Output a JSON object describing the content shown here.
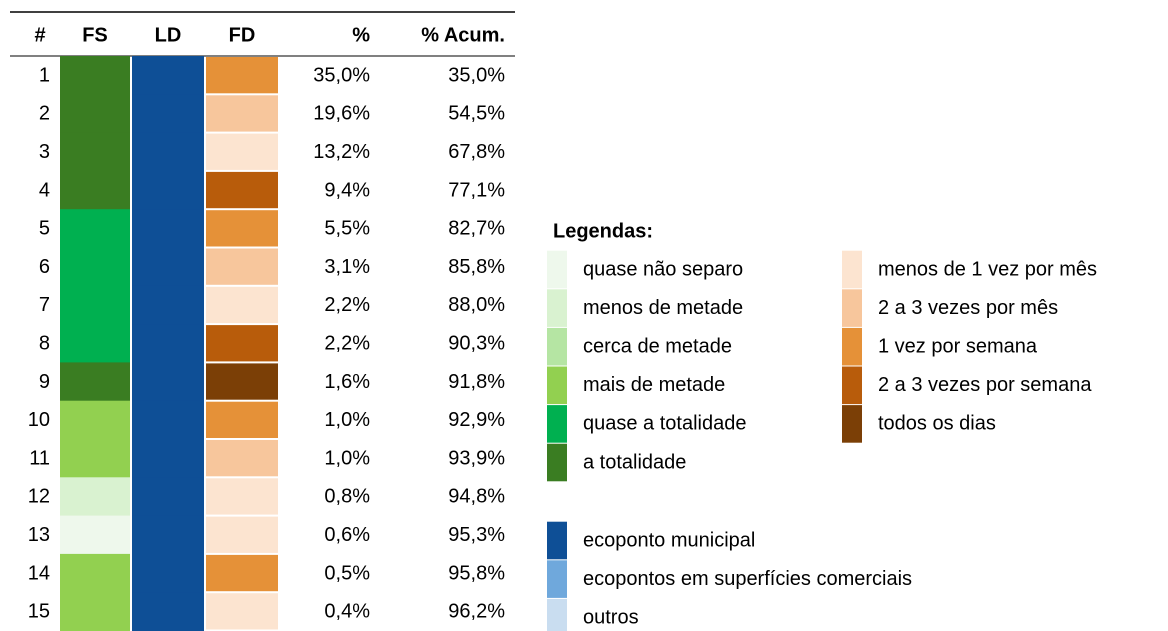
{
  "table": {
    "header": [
      "#",
      "FS",
      "LD",
      "FD",
      "%",
      "% Acum."
    ],
    "rows": [
      {
        "n": "1",
        "fs_color": "#3a7d22",
        "ld_color": "#0e4f96",
        "fd_color": "#e59138",
        "pct": "35,0%",
        "acum": "35,0%"
      },
      {
        "n": "2",
        "fs_color": "#3a7d22",
        "ld_color": "#0e4f96",
        "fd_color": "#f7c69c",
        "pct": "19,6%",
        "acum": "54,5%"
      },
      {
        "n": "3",
        "fs_color": "#3a7d22",
        "ld_color": "#0e4f96",
        "fd_color": "#fce4d0",
        "pct": "13,2%",
        "acum": "67,8%"
      },
      {
        "n": "4",
        "fs_color": "#3a7d22",
        "ld_color": "#0e4f96",
        "fd_color": "#b85c0b",
        "pct": "9,4%",
        "acum": "77,1%"
      },
      {
        "n": "5",
        "fs_color": "#00b050",
        "ld_color": "#0e4f96",
        "fd_color": "#e59138",
        "pct": "5,5%",
        "acum": "82,7%"
      },
      {
        "n": "6",
        "fs_color": "#00b050",
        "ld_color": "#0e4f96",
        "fd_color": "#f7c69c",
        "pct": "3,1%",
        "acum": "85,8%"
      },
      {
        "n": "7",
        "fs_color": "#00b050",
        "ld_color": "#0e4f96",
        "fd_color": "#fce4d0",
        "pct": "2,2%",
        "acum": "88,0%"
      },
      {
        "n": "8",
        "fs_color": "#00b050",
        "ld_color": "#0e4f96",
        "fd_color": "#b85c0b",
        "pct": "2,2%",
        "acum": "90,3%"
      },
      {
        "n": "9",
        "fs_color": "#3a7d22",
        "ld_color": "#0e4f96",
        "fd_color": "#7b3f06",
        "pct": "1,6%",
        "acum": "91,8%"
      },
      {
        "n": "10",
        "fs_color": "#92d050",
        "ld_color": "#0e4f96",
        "fd_color": "#e59138",
        "pct": "1,0%",
        "acum": "92,9%"
      },
      {
        "n": "11",
        "fs_color": "#92d050",
        "ld_color": "#0e4f96",
        "fd_color": "#f7c69c",
        "pct": "1,0%",
        "acum": "93,9%"
      },
      {
        "n": "12",
        "fs_color": "#d9f2d0",
        "ld_color": "#0e4f96",
        "fd_color": "#fce4d0",
        "pct": "0,8%",
        "acum": "94,8%"
      },
      {
        "n": "13",
        "fs_color": "#eef8ec",
        "ld_color": "#0e4f96",
        "fd_color": "#fce4d0",
        "pct": "0,6%",
        "acum": "95,3%"
      },
      {
        "n": "14",
        "fs_color": "#92d050",
        "ld_color": "#0e4f96",
        "fd_color": "#e59138",
        "pct": "0,5%",
        "acum": "95,8%"
      },
      {
        "n": "15",
        "fs_color": "#92d050",
        "ld_color": "#0e4f96",
        "fd_color": "#fce4d0",
        "pct": "0,4%",
        "acum": "96,2%"
      }
    ]
  },
  "legend": {
    "title": "Legendas:",
    "fs": [
      {
        "label": "quase não separo",
        "color": "#eef8ec"
      },
      {
        "label": "menos de metade",
        "color": "#d9f2d0"
      },
      {
        "label": "cerca de metade",
        "color": "#b5e5a3"
      },
      {
        "label": "mais de metade",
        "color": "#92d050"
      },
      {
        "label": "quase a totalidade",
        "color": "#00b050"
      },
      {
        "label": "a totalidade",
        "color": "#3a7d22"
      }
    ],
    "fd": [
      {
        "label": "menos de 1 vez por mês",
        "color": "#fce4d0"
      },
      {
        "label": "2 a 3 vezes por mês",
        "color": "#f7c69c"
      },
      {
        "label": "1 vez por semana",
        "color": "#e59138"
      },
      {
        "label": "2 a 3 vezes por semana",
        "color": "#b85c0b"
      },
      {
        "label": "todos os dias",
        "color": "#7b3f06"
      }
    ],
    "ld": [
      {
        "label": "ecoponto municipal",
        "color": "#0e4f96"
      },
      {
        "label": "ecopontos em superfícies comerciais",
        "color": "#6fa8dc"
      },
      {
        "label": "outros",
        "color": "#c9ddf0"
      }
    ]
  }
}
